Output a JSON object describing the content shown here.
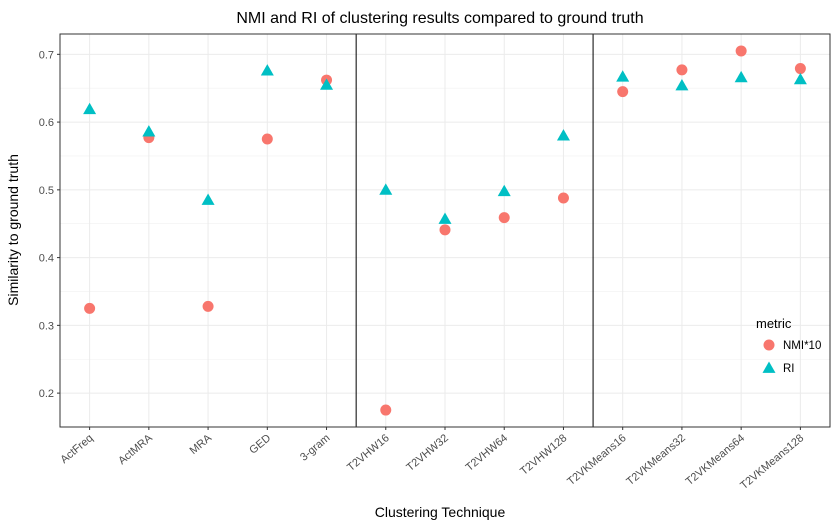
{
  "chart_data": {
    "type": "scatter",
    "title": "NMI and RI of clustering results compared to ground truth",
    "xlabel": "Clustering Technique",
    "ylabel": "Similarity to ground truth",
    "categories": [
      "ActFreq",
      "ActMRA",
      "MRA",
      "GED",
      "3-gram",
      "T2VHW16",
      "T2VHW32",
      "T2VHW64",
      "T2VHW128",
      "T2VKMeans16",
      "T2VKMeans32",
      "T2VKMeans64",
      "T2VKMeans128"
    ],
    "ylim": [
      0.15,
      0.73
    ],
    "yticks": [
      0.2,
      0.3,
      0.4,
      0.5,
      0.6,
      0.7
    ],
    "ytick_labels": [
      "0.2",
      "0.3",
      "0.4",
      "0.5",
      "0.6",
      "0.7"
    ],
    "group_separators_after": [
      "3-gram",
      "T2VHW128"
    ],
    "grid": true,
    "legend": {
      "title": "metric",
      "position": "right"
    },
    "series": [
      {
        "name": "NMI*10",
        "marker": "circle",
        "color": "#F8766D",
        "values": [
          0.325,
          0.577,
          0.328,
          0.575,
          0.662,
          0.175,
          0.441,
          0.459,
          0.488,
          0.645,
          0.677,
          0.705,
          0.679
        ]
      },
      {
        "name": "RI",
        "marker": "triangle",
        "color": "#00BFC4",
        "values": [
          0.619,
          0.586,
          0.485,
          0.676,
          0.655,
          0.5,
          0.457,
          0.498,
          0.58,
          0.667,
          0.654,
          0.666,
          0.663
        ]
      }
    ]
  }
}
